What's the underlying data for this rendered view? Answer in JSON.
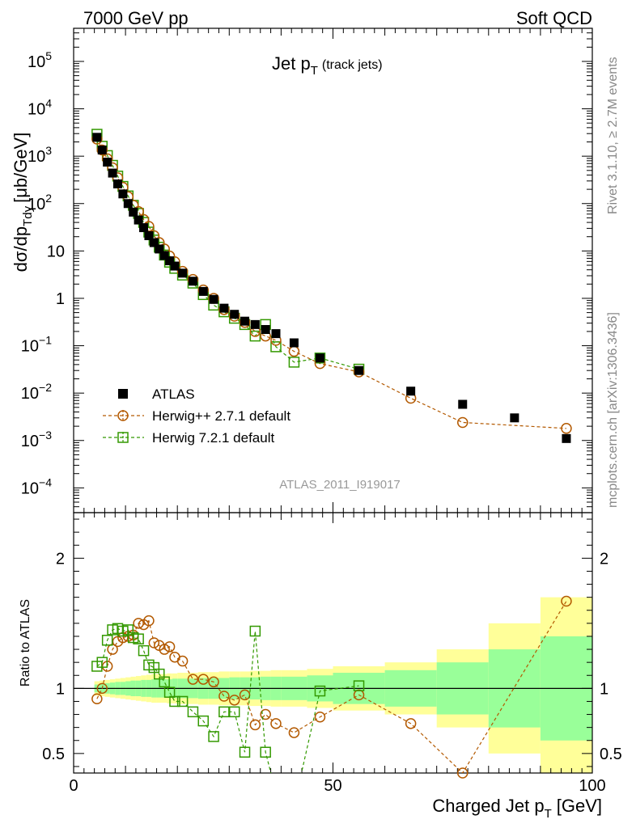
{
  "header": {
    "left": "7000 GeV pp",
    "right": "Soft QCD"
  },
  "side_labels": {
    "rivet": "Rivet 3.1.10, ≥ 2.7M events",
    "mcplots": "mcplots.cern.ch [arXiv:1306.3436]"
  },
  "chart_data": [
    {
      "type": "scatter",
      "panel": "main",
      "title_main": "Jet p",
      "title_sub": "T",
      "title_suffix": "(track jets)",
      "ylabel": "dσ/dp",
      "ylabel_sub": "Tdy",
      "ylabel_units": "[μb/GeV]",
      "watermark": "ATLAS_2011_I919017",
      "xlim": [
        0,
        100
      ],
      "ylog": true,
      "ylim": [
        3e-05,
        500000.0
      ],
      "yticks": [
        {
          "v": 0.0001,
          "m": "10",
          "e": "−4"
        },
        {
          "v": 0.001,
          "m": "10",
          "e": "−3"
        },
        {
          "v": 0.01,
          "m": "10",
          "e": "−2"
        },
        {
          "v": 0.1,
          "m": "10",
          "e": "−1"
        },
        {
          "v": 1,
          "m": "1",
          "e": ""
        },
        {
          "v": 10,
          "m": "10",
          "e": ""
        },
        {
          "v": 100,
          "m": "10",
          "e": "2"
        },
        {
          "v": 1000,
          "m": "10",
          "e": "3"
        },
        {
          "v": 10000,
          "m": "10",
          "e": "4"
        },
        {
          "v": 100000,
          "m": "10",
          "e": "5"
        }
      ],
      "legend_position": "bottom-left",
      "series": [
        {
          "name": "ATLAS",
          "color": "#000000",
          "marker": "filled-square",
          "x": [
            4.5,
            5.5,
            6.5,
            7.5,
            8.5,
            9.5,
            10.5,
            11.5,
            12.5,
            13.5,
            14.5,
            15.5,
            16.5,
            17.5,
            18.5,
            19.5,
            21,
            23,
            25,
            27,
            29,
            31,
            33,
            35,
            37,
            39,
            42.5,
            47.5,
            55,
            65,
            75,
            85,
            95
          ],
          "y": [
            2500,
            1350,
            750,
            440,
            260,
            160,
            100,
            66,
            45,
            31,
            21,
            15,
            11,
            8,
            6.2,
            4.8,
            3.4,
            2.3,
            1.4,
            0.95,
            0.62,
            0.46,
            0.33,
            0.28,
            0.22,
            0.18,
            0.115,
            0.055,
            0.03,
            0.011,
            0.0058,
            0.003,
            0.0011
          ]
        },
        {
          "name": "Herwig++ 2.7.1 default",
          "color": "#b35900",
          "marker": "open-circle",
          "x": [
            4.5,
            5.5,
            6.5,
            7.5,
            8.5,
            9.5,
            10.5,
            11.5,
            12.5,
            13.5,
            14.5,
            15.5,
            16.5,
            17.5,
            18.5,
            19.5,
            21,
            23,
            25,
            27,
            29,
            31,
            33,
            35,
            37,
            39,
            42.5,
            47.5,
            55,
            65,
            75,
            95
          ],
          "y": [
            2300,
            1350,
            880,
            570,
            350,
            220,
            140,
            92,
            68,
            46,
            33,
            21,
            15,
            11,
            7.8,
            5.9,
            3.7,
            2.5,
            1.5,
            1.0,
            0.58,
            0.42,
            0.31,
            0.2,
            0.16,
            0.13,
            0.076,
            0.042,
            0.028,
            0.0078,
            0.0024,
            0.0018
          ]
        },
        {
          "name": "Herwig 7.2.1 default",
          "color": "#339900",
          "marker": "open-square",
          "x": [
            4.5,
            5.5,
            6.5,
            7.5,
            8.5,
            9.5,
            10.5,
            11.5,
            12.5,
            13.5,
            14.5,
            15.5,
            16.5,
            17.5,
            18.5,
            19.5,
            21,
            23,
            25,
            27,
            29,
            31,
            33,
            35,
            37,
            39,
            42.5,
            47.5,
            55
          ],
          "y": [
            2900,
            1620,
            1030,
            640,
            380,
            230,
            145,
            92,
            62,
            40,
            25,
            17,
            12,
            8.2,
            5.8,
            4.3,
            3.1,
            2.1,
            1.2,
            0.72,
            0.52,
            0.38,
            0.28,
            0.16,
            0.28,
            0.095,
            0.045,
            0.055,
            0.032
          ]
        }
      ]
    },
    {
      "type": "line",
      "panel": "ratio",
      "ylabel": "Ratio to ATLAS",
      "xlabel": "Charged Jet p",
      "xlabel_sub": "T",
      "xlabel_units": "[GeV]",
      "xlim": [
        0,
        100
      ],
      "ylim": [
        0.35,
        2.35
      ],
      "xticks": [
        0,
        50,
        100
      ],
      "yticks": [
        0.5,
        1,
        2
      ],
      "reference_line": 1,
      "bands": {
        "edges": [
          4,
          5,
          6,
          7,
          8,
          9,
          10,
          11,
          12,
          13,
          14,
          15,
          16,
          17,
          18,
          19,
          20,
          22,
          24,
          26,
          28,
          30,
          32,
          34,
          36,
          38,
          40,
          45,
          50,
          60,
          70,
          80,
          90,
          100
        ],
        "yellow_half": [
          0.055,
          0.06,
          0.065,
          0.07,
          0.075,
          0.08,
          0.085,
          0.09,
          0.095,
          0.1,
          0.105,
          0.11,
          0.11,
          0.11,
          0.115,
          0.115,
          0.12,
          0.12,
          0.125,
          0.125,
          0.13,
          0.13,
          0.13,
          0.135,
          0.135,
          0.14,
          0.14,
          0.15,
          0.17,
          0.2,
          0.3,
          0.5,
          0.7
        ],
        "green_half": [
          0.03,
          0.035,
          0.04,
          0.045,
          0.05,
          0.05,
          0.055,
          0.06,
          0.06,
          0.065,
          0.065,
          0.07,
          0.07,
          0.07,
          0.07,
          0.075,
          0.075,
          0.075,
          0.08,
          0.08,
          0.08,
          0.085,
          0.085,
          0.085,
          0.09,
          0.09,
          0.09,
          0.1,
          0.12,
          0.14,
          0.2,
          0.3,
          0.4
        ],
        "yellow_color": "#ffff99",
        "green_color": "#99ff99"
      },
      "series": [
        {
          "name": "Herwig++ 2.7.1 default",
          "color": "#b35900",
          "x": [
            4.5,
            5.5,
            6.5,
            7.5,
            8.5,
            9.5,
            10.5,
            11.5,
            12.5,
            13.5,
            14.5,
            15.5,
            16.5,
            17.5,
            18.5,
            19.5,
            21,
            23,
            25,
            27,
            29,
            31,
            33,
            35,
            37,
            39,
            42.5,
            47.5,
            55,
            65,
            75,
            95
          ],
          "y": [
            0.92,
            1.0,
            1.17,
            1.3,
            1.36,
            1.39,
            1.4,
            1.41,
            1.5,
            1.49,
            1.52,
            1.35,
            1.33,
            1.3,
            1.32,
            1.24,
            1.21,
            1.07,
            1.07,
            1.05,
            0.94,
            0.91,
            0.95,
            0.72,
            0.8,
            0.73,
            0.66,
            0.78,
            0.95,
            0.73,
            0.35,
            1.67
          ]
        },
        {
          "name": "Herwig 7.2.1 default",
          "color": "#339900",
          "x": [
            4.5,
            5.5,
            6.5,
            7.5,
            8.5,
            9.5,
            10.5,
            11.5,
            12.5,
            13.5,
            14.5,
            15.5,
            16.5,
            17.5,
            18.5,
            19.5,
            21,
            23,
            25,
            27,
            29,
            31,
            33,
            35,
            37,
            39,
            42.5,
            47.5,
            55
          ],
          "y": [
            1.17,
            1.2,
            1.37,
            1.45,
            1.46,
            1.44,
            1.45,
            1.39,
            1.38,
            1.29,
            1.18,
            1.16,
            1.11,
            1.05,
            0.97,
            0.9,
            0.9,
            0.82,
            0.75,
            0.63,
            0.82,
            0.82,
            0.51,
            1.44,
            0.51,
            0.2,
            0.1,
            0.98,
            1.02
          ]
        }
      ]
    }
  ]
}
